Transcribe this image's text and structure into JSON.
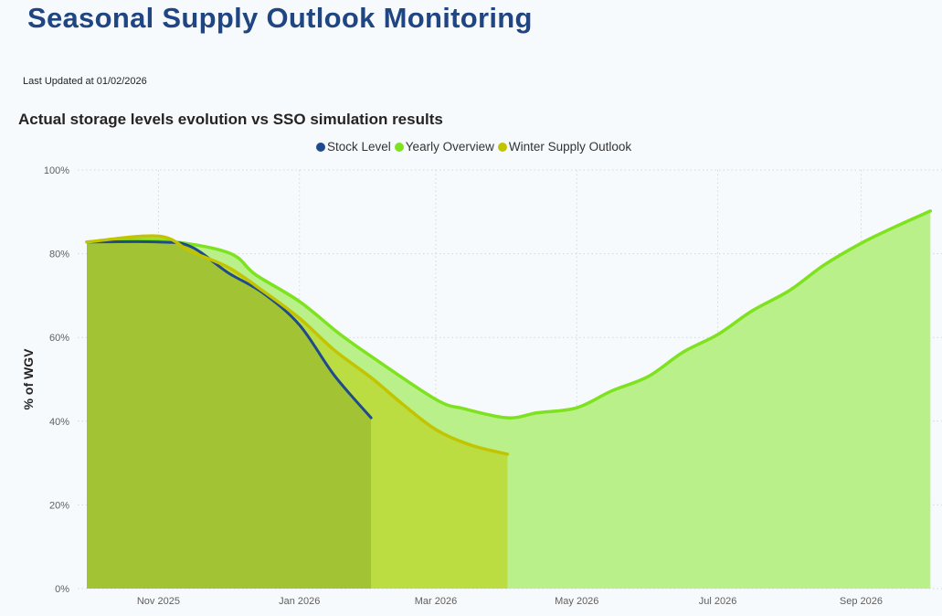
{
  "header": {
    "title": "Seasonal Supply Outlook Monitoring",
    "last_updated": "Last Updated at 01/02/2026"
  },
  "chart_data": {
    "type": "area",
    "title": "Actual storage levels evolution vs SSO simulation results",
    "xlabel": "",
    "ylabel": "% of WGV",
    "ylim": [
      0,
      100
    ],
    "y_ticks": [
      "0%",
      "20%",
      "40%",
      "60%",
      "80%",
      "100%"
    ],
    "y_tick_values": [
      0,
      20,
      40,
      60,
      80,
      100
    ],
    "x_ticks": [
      "Nov 2025",
      "Jan 2026",
      "Mar 2026",
      "May 2026",
      "Jul 2026",
      "Sep 2026"
    ],
    "x_tick_dates": [
      "2025-11-01",
      "2026-01-01",
      "2026-03-01",
      "2026-05-01",
      "2026-07-01",
      "2026-09-01"
    ],
    "xlim": [
      "2025-09-22",
      "2026-10-05"
    ],
    "grid": true,
    "legend_position": "top-center",
    "series": [
      {
        "name": "Yearly Overview",
        "color": "#7ee21f",
        "fill": "#b9f089",
        "x": [
          "2025-10-01",
          "2025-11-01",
          "2025-12-01",
          "2025-12-13",
          "2026-01-01",
          "2026-01-18",
          "2026-02-01",
          "2026-03-01",
          "2026-03-13",
          "2026-04-01",
          "2026-04-14",
          "2026-05-01",
          "2026-05-16",
          "2026-06-01",
          "2026-06-16",
          "2026-07-01",
          "2026-07-16",
          "2026-08-01",
          "2026-08-16",
          "2026-09-01",
          "2026-09-16",
          "2026-10-01"
        ],
        "values": [
          82.8,
          83.2,
          80.3,
          75,
          68.6,
          61,
          55.5,
          45.2,
          43,
          40.8,
          42,
          43.2,
          47.2,
          50.7,
          56.5,
          60.7,
          66.4,
          71.2,
          77.3,
          82.5,
          86.5,
          90.2
        ]
      },
      {
        "name": "Winter Supply Outlook",
        "color": "#c2c400",
        "fill": "#bcdd42",
        "x": [
          "2025-10-01",
          "2025-11-01",
          "2025-11-15",
          "2025-12-01",
          "2025-12-16",
          "2026-01-01",
          "2026-01-16",
          "2026-02-01",
          "2026-02-15",
          "2026-03-01",
          "2026-03-16",
          "2026-04-01"
        ],
        "values": [
          82.8,
          84.2,
          80.5,
          76.8,
          71.2,
          64.6,
          57,
          50.4,
          43.9,
          38,
          34.3,
          32.1
        ]
      },
      {
        "name": "Stock Level",
        "color": "#1f4a8c",
        "fill": "#a2c434",
        "x": [
          "2025-10-01",
          "2025-11-01",
          "2025-11-15",
          "2025-12-01",
          "2025-12-16",
          "2026-01-01",
          "2026-01-16",
          "2026-02-01"
        ],
        "values": [
          82.8,
          82.8,
          81.7,
          75.5,
          70.7,
          63,
          51,
          40.8
        ]
      }
    ]
  }
}
